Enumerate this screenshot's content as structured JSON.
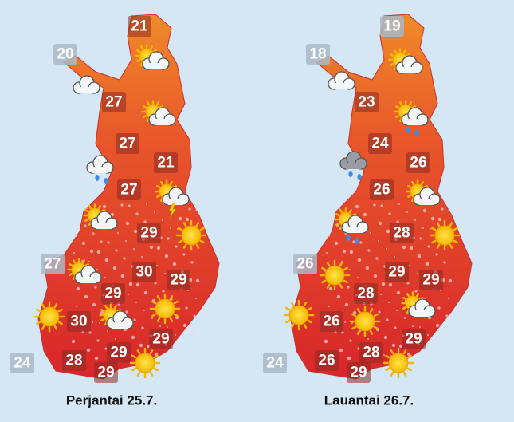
{
  "maps": [
    {
      "label": "Perjantai 25.7.",
      "temperatures": [
        21,
        20,
        27,
        27,
        21,
        27,
        29,
        27,
        30,
        29,
        29,
        30,
        29,
        29,
        24,
        28,
        29
      ]
    },
    {
      "label": "Lauantai 26.7.",
      "temperatures": [
        19,
        18,
        23,
        24,
        26,
        26,
        28,
        26,
        29,
        29,
        28,
        26,
        29,
        28,
        24,
        26,
        29
      ]
    }
  ]
}
